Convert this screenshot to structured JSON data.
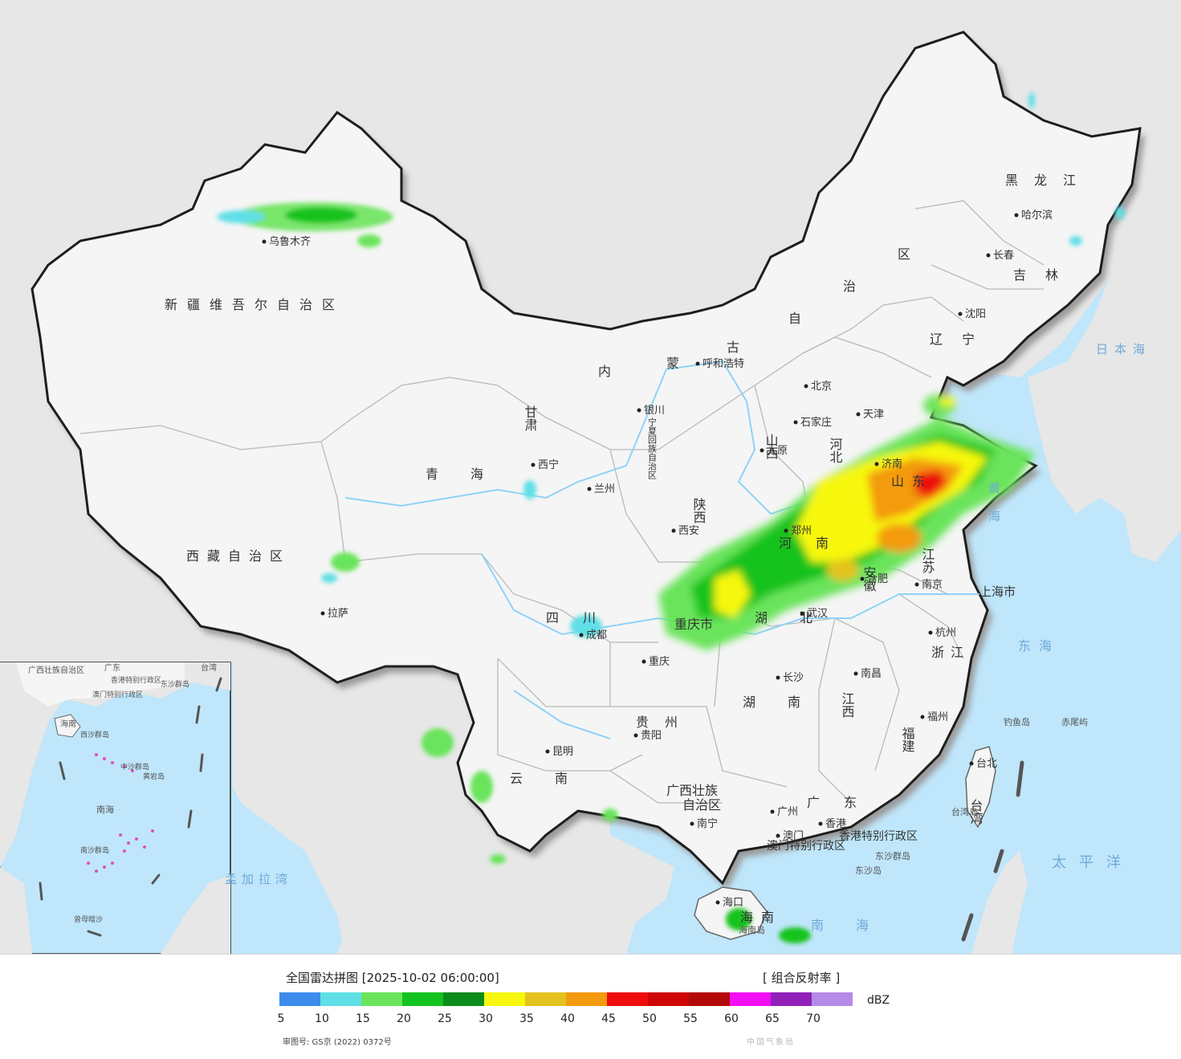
{
  "colors": {
    "sea": "#bfe6fb",
    "foreign_land": "#e7e7e7",
    "china_land": "#f5f5f5",
    "border": "#1e1e1e",
    "province_border": "#b9b9b9",
    "river": "#8fd2f7"
  },
  "legend": {
    "title": "全国雷达拼图 [2025-10-02 06:00:00]",
    "product": "[ 组合反射率 ]",
    "unit": "dBZ",
    "colors": [
      "#3d8bec",
      "#60dfe6",
      "#6be45c",
      "#14c31f",
      "#0c8c1a",
      "#f7f710",
      "#e4c21e",
      "#f39a0e",
      "#ee0d0d",
      "#cf0606",
      "#b30808",
      "#f40ef4",
      "#9020b8",
      "#b58ae8"
    ],
    "ticks": [
      "5",
      "10",
      "15",
      "20",
      "25",
      "30",
      "35",
      "40",
      "45",
      "50",
      "55",
      "60",
      "65",
      "70"
    ],
    "review_no": "审图号: GS京 (2022) 0372号",
    "source": "中国气象局"
  },
  "map": {
    "province_labels": [
      {
        "id": "xinjiang",
        "text": "新疆维吾尔自治区"
      },
      {
        "id": "xizang",
        "text": "西藏自治区"
      },
      {
        "id": "neimenggu-1",
        "text": "内"
      },
      {
        "id": "neimenggu-2",
        "text": "蒙"
      },
      {
        "id": "neimenggu-3",
        "text": "古"
      },
      {
        "id": "neimenggu-4",
        "text": "自"
      },
      {
        "id": "neimenggu-5",
        "text": "治"
      },
      {
        "id": "neimenggu-6",
        "text": "区"
      },
      {
        "id": "heilongjiang",
        "text": "黑龙江"
      },
      {
        "id": "jilin",
        "text": "吉林"
      },
      {
        "id": "liaoning",
        "text": "辽宁"
      },
      {
        "id": "hebei",
        "text": "河北"
      },
      {
        "id": "shanxi",
        "text": "山西"
      },
      {
        "id": "shandong",
        "text": "山东"
      },
      {
        "id": "henan",
        "text": "河南"
      },
      {
        "id": "jiangsu",
        "text": "江苏"
      },
      {
        "id": "anhui",
        "text": "安徽"
      },
      {
        "id": "hubei",
        "text": "湖北"
      },
      {
        "id": "hunan",
        "text": "湖南"
      },
      {
        "id": "jiangxi",
        "text": "江西"
      },
      {
        "id": "zhejiang",
        "text": "浙江"
      },
      {
        "id": "fujian",
        "text": "福建"
      },
      {
        "id": "guangdong",
        "text": "广东"
      },
      {
        "id": "guangxi-1",
        "text": "广西壮族"
      },
      {
        "id": "guangxi-2",
        "text": "自治区"
      },
      {
        "id": "hainan",
        "text": "海南"
      },
      {
        "id": "yunnan",
        "text": "云南"
      },
      {
        "id": "guizhou",
        "text": "贵州"
      },
      {
        "id": "sichuan",
        "text": "四川"
      },
      {
        "id": "chongqing",
        "text": "重庆市"
      },
      {
        "id": "shaanxi",
        "text": "陕西"
      },
      {
        "id": "gansu",
        "text": "甘肃"
      },
      {
        "id": "qinghai",
        "text": "青海"
      },
      {
        "id": "ningxia",
        "text": "宁夏回族自治区"
      },
      {
        "id": "shanghai",
        "text": "上海市"
      },
      {
        "id": "taiwan",
        "text": "台湾"
      },
      {
        "id": "hongkong",
        "text": "香港特别行政区"
      },
      {
        "id": "macao",
        "text": "澳门特别行政区"
      }
    ],
    "cities": [
      {
        "id": "urumqi",
        "text": "乌鲁木齐"
      },
      {
        "id": "lhasa",
        "text": "拉萨"
      },
      {
        "id": "xining",
        "text": "西宁"
      },
      {
        "id": "lanzhou",
        "text": "兰州"
      },
      {
        "id": "yinchuan",
        "text": "银川"
      },
      {
        "id": "hohhot",
        "text": "呼和浩特"
      },
      {
        "id": "harbin",
        "text": "哈尔滨"
      },
      {
        "id": "changchun",
        "text": "长春"
      },
      {
        "id": "shenyang",
        "text": "沈阳"
      },
      {
        "id": "beijing",
        "text": "北京"
      },
      {
        "id": "tianjin",
        "text": "天津"
      },
      {
        "id": "shijiazhuang",
        "text": "石家庄"
      },
      {
        "id": "taiyuan",
        "text": "太原"
      },
      {
        "id": "jinan",
        "text": "济南"
      },
      {
        "id": "zhengzhou",
        "text": "郑州"
      },
      {
        "id": "xian",
        "text": "西安"
      },
      {
        "id": "hefei",
        "text": "合肥"
      },
      {
        "id": "nanjing",
        "text": "南京"
      },
      {
        "id": "hangzhou",
        "text": "杭州"
      },
      {
        "id": "wuhan",
        "text": "武汉"
      },
      {
        "id": "changsha",
        "text": "长沙"
      },
      {
        "id": "nanchang",
        "text": "南昌"
      },
      {
        "id": "fuzhou",
        "text": "福州"
      },
      {
        "id": "taibei",
        "text": "台北"
      },
      {
        "id": "guangzhou",
        "text": "广州"
      },
      {
        "id": "hongkong-city",
        "text": "香港"
      },
      {
        "id": "macao-city",
        "text": "澳门"
      },
      {
        "id": "nanning",
        "text": "南宁"
      },
      {
        "id": "haikou",
        "text": "海口"
      },
      {
        "id": "kunming",
        "text": "昆明"
      },
      {
        "id": "guiyang",
        "text": "贵阳"
      },
      {
        "id": "chengdu",
        "text": "成都"
      },
      {
        "id": "chongqing-city",
        "text": "重庆"
      }
    ],
    "sea_labels": [
      {
        "id": "riben-hai",
        "text": "日本海"
      },
      {
        "id": "huang-hai",
        "text": "黄海"
      },
      {
        "id": "dong-hai",
        "text": "东海"
      },
      {
        "id": "tai-pingyang",
        "text": "太平洋"
      },
      {
        "id": "nan-hai",
        "text": "南海"
      },
      {
        "id": "mengjiala-wan",
        "text": "孟加拉湾"
      }
    ],
    "islands": [
      {
        "id": "diaoyu",
        "text": "钓鱼岛"
      },
      {
        "id": "chiwei",
        "text": "赤尾屿"
      },
      {
        "id": "taiwan-dao",
        "text": "台湾岛"
      },
      {
        "id": "dongsha",
        "text": "东沙群岛"
      },
      {
        "id": "dongsha-dao",
        "text": "东沙岛"
      },
      {
        "id": "hainan-dao",
        "text": "海南岛"
      }
    ],
    "inset": {
      "labels": [
        {
          "id": "inset-guangxi",
          "text": "广西壮族自治区"
        },
        {
          "id": "inset-guangdong",
          "text": "广东"
        },
        {
          "id": "inset-taiwan",
          "text": "台湾"
        },
        {
          "id": "inset-hk",
          "text": "香港特别行政区"
        },
        {
          "id": "inset-macao",
          "text": "澳门特别行政区"
        },
        {
          "id": "inset-hainan",
          "text": "海南"
        },
        {
          "id": "inset-nanhai",
          "text": "南海"
        },
        {
          "id": "inset-zhongsha",
          "text": "中沙群岛"
        },
        {
          "id": "inset-huangyan",
          "text": "黄岩岛"
        },
        {
          "id": "inset-xisha",
          "text": "西沙群岛"
        },
        {
          "id": "inset-nansha",
          "text": "南沙群岛"
        },
        {
          "id": "inset-zengmu",
          "text": "曾母暗沙"
        },
        {
          "id": "inset-dongsha",
          "text": "东沙群岛"
        }
      ]
    }
  }
}
